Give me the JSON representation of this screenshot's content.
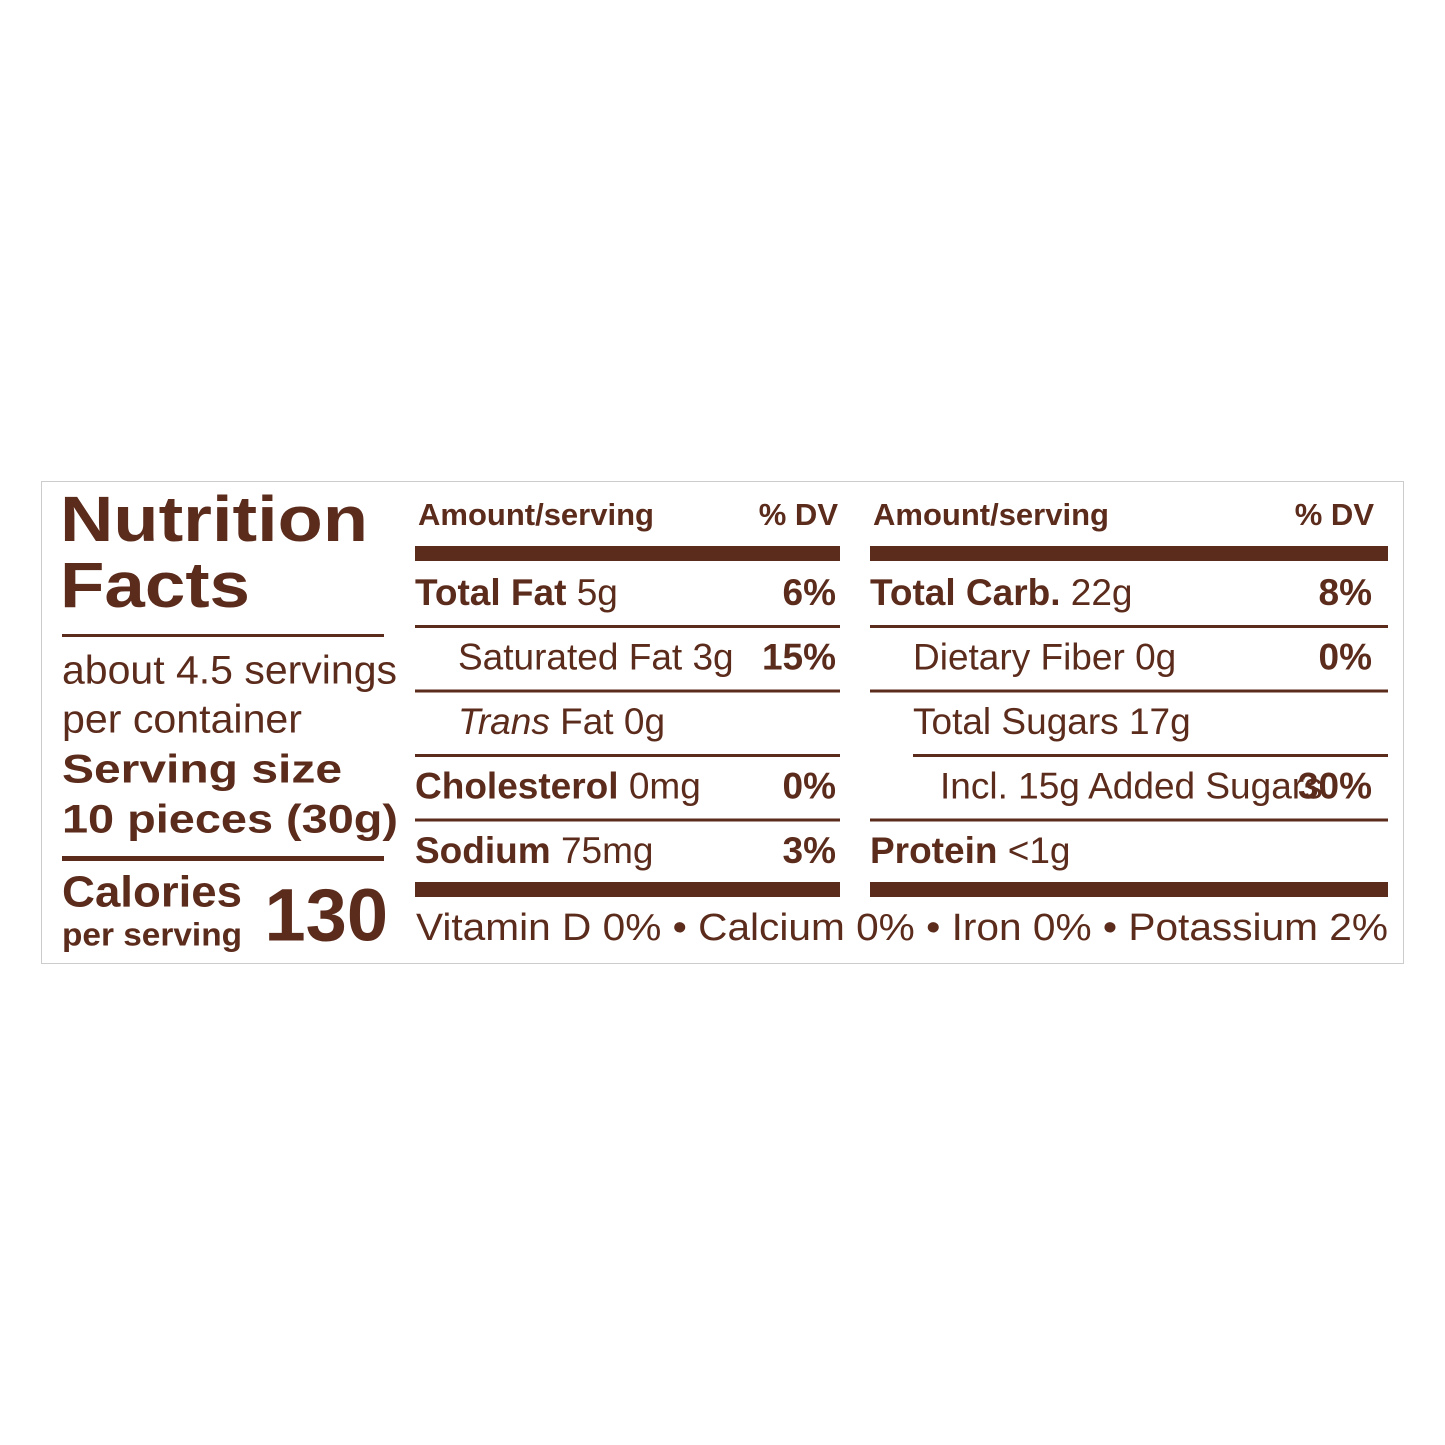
{
  "label": {
    "title_lines": [
      "Nutrition",
      "Facts"
    ],
    "servings_lines": [
      "about 4.5 servings",
      "per container"
    ],
    "serving_size": {
      "label": "Serving size",
      "value": "10 pieces (30g)"
    },
    "calories": {
      "label": "Calories",
      "sublabel": "per serving",
      "value": "130"
    },
    "columns": [
      {
        "header": {
          "amount": "Amount/serving",
          "dv": "% DV"
        },
        "rows": [
          {
            "level": 0,
            "name": "Total Fat",
            "amount": "5g",
            "dv": "6%"
          },
          {
            "level": 1,
            "name": "Saturated Fat",
            "amount": "3g",
            "dv": "15%"
          },
          {
            "level": 1,
            "name_italic": "Trans",
            "name": "Fat",
            "amount": "0g"
          },
          {
            "level": 0,
            "name": "Cholesterol",
            "amount": "0mg",
            "dv": "0%"
          },
          {
            "level": 0,
            "name": "Sodium",
            "amount": "75mg",
            "dv": "3%"
          }
        ]
      },
      {
        "header": {
          "amount": "Amount/serving",
          "dv": "% DV"
        },
        "rows": [
          {
            "level": 0,
            "name": "Total Carb.",
            "amount": "22g",
            "dv": "8%"
          },
          {
            "level": 1,
            "name": "Dietary Fiber",
            "amount": "0g",
            "dv": "0%"
          },
          {
            "level": 1,
            "name": "Total Sugars",
            "amount": "17g"
          },
          {
            "level": 2,
            "name": "Incl. 15g Added Sugars",
            "dv": "30%"
          },
          {
            "level": 0,
            "name": "Protein",
            "amount": "<1g"
          }
        ]
      }
    ],
    "vitamins": [
      "Vitamin D 0%",
      "Calcium 0%",
      "Iron 0%",
      "Potassium 2%"
    ]
  }
}
